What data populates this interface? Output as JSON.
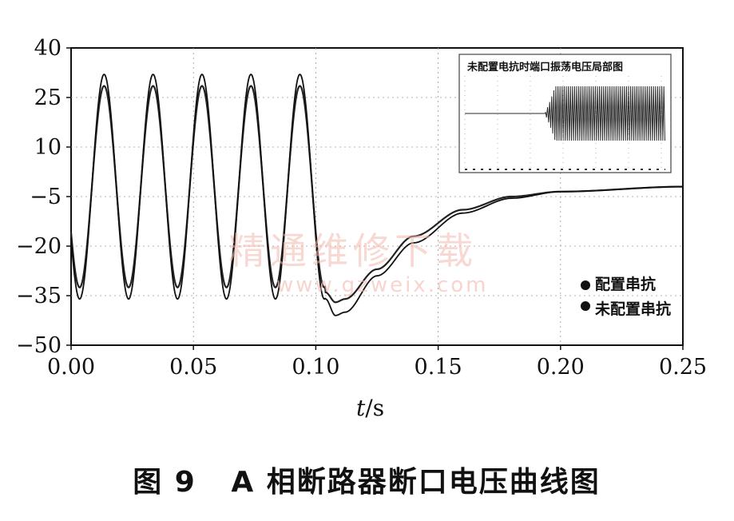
{
  "chart_data": {
    "type": "line",
    "xlabel_italic": "t",
    "xlabel_unit": "/s",
    "x_ticks": [
      "0.00",
      "0.05",
      "0.10",
      "0.15",
      "0.20",
      "0.25"
    ],
    "y_ticks": [
      "40",
      "25",
      "10",
      "−5",
      "−20",
      "−35",
      "−50"
    ],
    "xlim": [
      0,
      0.25
    ],
    "ylim": [
      -50,
      40
    ],
    "grid": "dotted",
    "series": [
      {
        "name": "配置串抗",
        "color": "#222222",
        "sine": {
          "amplitude": 30.5,
          "offset": -2,
          "period": 0.02,
          "peak_at": 0.0135,
          "until": 0.104
        },
        "transient": {
          "x": [
            0.104,
            0.108,
            0.112,
            0.125,
            0.14,
            0.16,
            0.18,
            0.2,
            0.25
          ],
          "y": [
            -34,
            -37,
            -36,
            -27,
            -17,
            -9,
            -5,
            -3.5,
            -2
          ]
        }
      },
      {
        "name": "未配置串抗",
        "color": "#111111",
        "sine": {
          "amplitude": 34,
          "offset": -2,
          "period": 0.02,
          "peak_at": 0.0135,
          "until": 0.104
        },
        "transient": {
          "x": [
            0.104,
            0.108,
            0.112,
            0.125,
            0.14,
            0.16,
            0.18,
            0.2,
            0.25
          ],
          "y": [
            -36,
            -41,
            -40,
            -29,
            -19,
            -10,
            -5.5,
            -3.5,
            -2
          ]
        }
      }
    ],
    "legend": {
      "position": "right",
      "entries": [
        "配置串抗",
        "未配置串抗"
      ]
    },
    "inset": {
      "title": "未配置电抗时端口振荡电压局部图",
      "position": "top-right"
    }
  },
  "caption": "图 9   A 相断路器断口电压曲线图",
  "watermark": {
    "text": "精通维修下载",
    "url": "www.gzweix.com"
  }
}
